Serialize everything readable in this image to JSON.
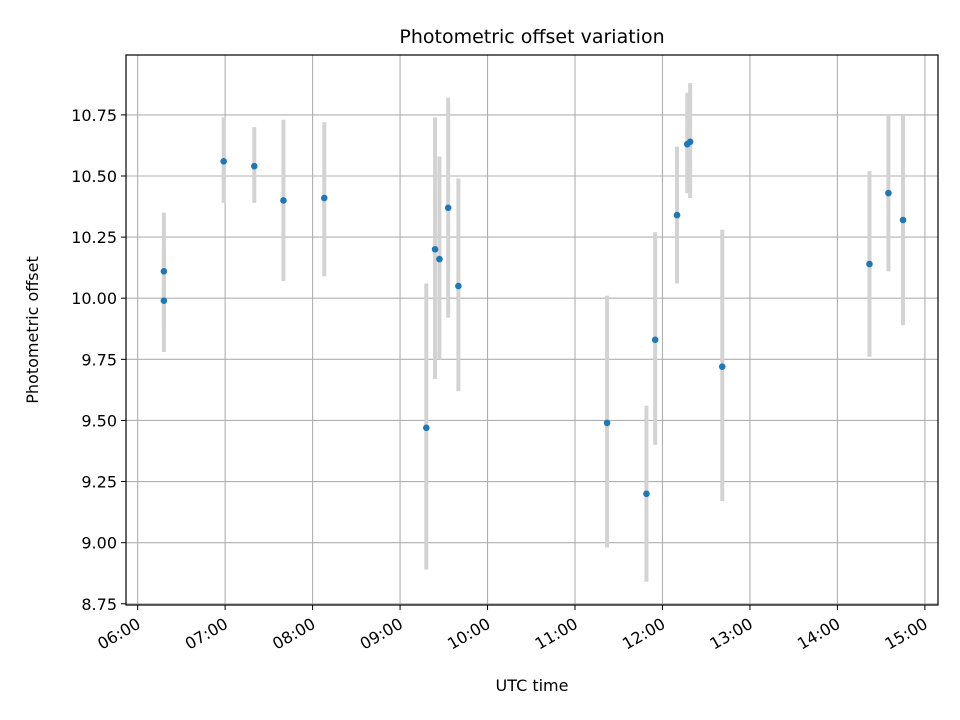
{
  "chart_data": {
    "type": "scatter",
    "title": "Photometric offset variation",
    "xlabel": "UTC time",
    "ylabel": "Photometric offset",
    "grid": true,
    "xlim": [
      "05:52",
      "15:09"
    ],
    "ylim": [
      8.745,
      10.995
    ],
    "x_ticks": [
      "06:00",
      "07:00",
      "08:00",
      "09:00",
      "10:00",
      "11:00",
      "12:00",
      "13:00",
      "14:00",
      "15:00"
    ],
    "y_ticks": [
      8.75,
      9.0,
      9.25,
      9.5,
      9.75,
      10.0,
      10.25,
      10.5,
      10.75
    ],
    "y_tick_labels": [
      "8.75",
      "9.00",
      "9.25",
      "9.50",
      "9.75",
      "10.00",
      "10.25",
      "10.50",
      "10.75"
    ],
    "marker_color": "#1f77b4",
    "errorbar_color": "#d3d3d3",
    "points": [
      {
        "x": "06:18",
        "y": 9.99,
        "ylow": 9.78,
        "yhigh": 10.2
      },
      {
        "x": "06:18",
        "y": 10.11,
        "ylow": 9.87,
        "yhigh": 10.35
      },
      {
        "x": "06:59",
        "y": 10.56,
        "ylow": 10.39,
        "yhigh": 10.74
      },
      {
        "x": "07:20",
        "y": 10.54,
        "ylow": 10.39,
        "yhigh": 10.7
      },
      {
        "x": "07:40",
        "y": 10.4,
        "ylow": 10.07,
        "yhigh": 10.73
      },
      {
        "x": "08:08",
        "y": 10.41,
        "ylow": 10.09,
        "yhigh": 10.72
      },
      {
        "x": "09:18",
        "y": 9.47,
        "ylow": 8.89,
        "yhigh": 10.06
      },
      {
        "x": "09:24",
        "y": 10.2,
        "ylow": 9.67,
        "yhigh": 10.74
      },
      {
        "x": "09:27",
        "y": 10.16,
        "ylow": 9.75,
        "yhigh": 10.58
      },
      {
        "x": "09:33",
        "y": 10.37,
        "ylow": 9.92,
        "yhigh": 10.82
      },
      {
        "x": "09:40",
        "y": 10.05,
        "ylow": 9.62,
        "yhigh": 10.49
      },
      {
        "x": "11:22",
        "y": 9.49,
        "ylow": 8.98,
        "yhigh": 10.01
      },
      {
        "x": "11:49",
        "y": 9.2,
        "ylow": 8.84,
        "yhigh": 9.56
      },
      {
        "x": "11:55",
        "y": 9.83,
        "ylow": 9.4,
        "yhigh": 10.27
      },
      {
        "x": "12:10",
        "y": 10.34,
        "ylow": 10.06,
        "yhigh": 10.62
      },
      {
        "x": "12:17",
        "y": 10.63,
        "ylow": 10.43,
        "yhigh": 10.84
      },
      {
        "x": "12:19",
        "y": 10.64,
        "ylow": 10.41,
        "yhigh": 10.88
      },
      {
        "x": "12:41",
        "y": 9.72,
        "ylow": 9.17,
        "yhigh": 10.28
      },
      {
        "x": "14:22",
        "y": 10.14,
        "ylow": 9.76,
        "yhigh": 10.52
      },
      {
        "x": "14:35",
        "y": 10.43,
        "ylow": 10.11,
        "yhigh": 10.75
      },
      {
        "x": "14:45",
        "y": 10.32,
        "ylow": 9.89,
        "yhigh": 10.75
      }
    ]
  }
}
